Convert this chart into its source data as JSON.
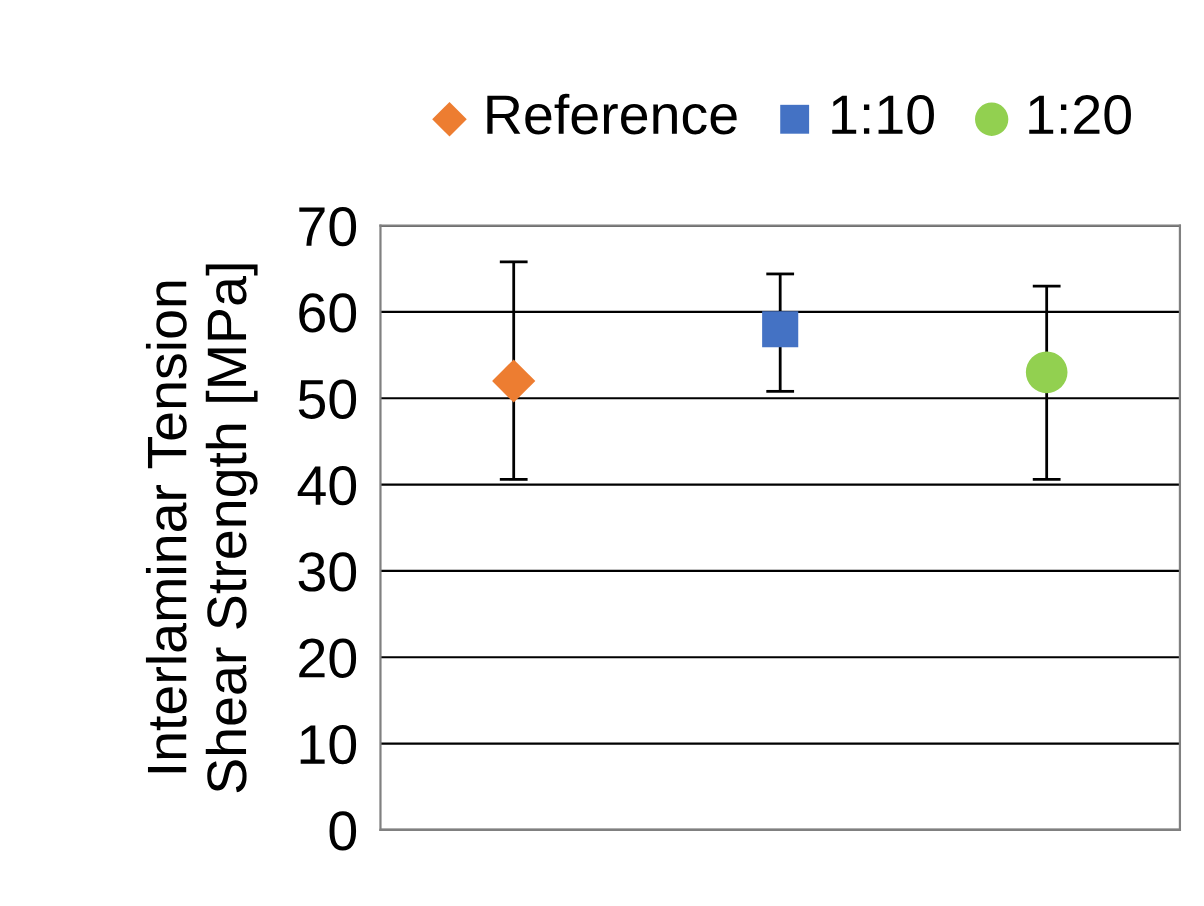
{
  "chart_data": {
    "type": "scatter",
    "ylabel": "Interlaminar Tension\nShear Strength [MPa]",
    "categories": [
      null,
      null,
      null
    ],
    "ylim": [
      0,
      70
    ],
    "yticks": [
      0,
      10,
      20,
      30,
      40,
      50,
      60,
      70
    ],
    "grid": "y",
    "legend": "top",
    "series": [
      {
        "name": "Reference",
        "color": "#ed7d31",
        "marker": "diamond",
        "values": [
          52,
          null,
          null
        ],
        "errors": [
          [
            40.6,
            65.8
          ],
          null,
          null
        ]
      },
      {
        "name": "1:10",
        "color": "#4472c4",
        "marker": "square",
        "values": [
          null,
          58,
          null
        ],
        "errors": [
          null,
          [
            50.8,
            64.4
          ],
          null
        ]
      },
      {
        "name": "1:20",
        "color": "#92d050",
        "marker": "circle",
        "values": [
          null,
          null,
          53
        ],
        "errors": [
          null,
          null,
          [
            40.6,
            63
          ]
        ]
      }
    ]
  }
}
